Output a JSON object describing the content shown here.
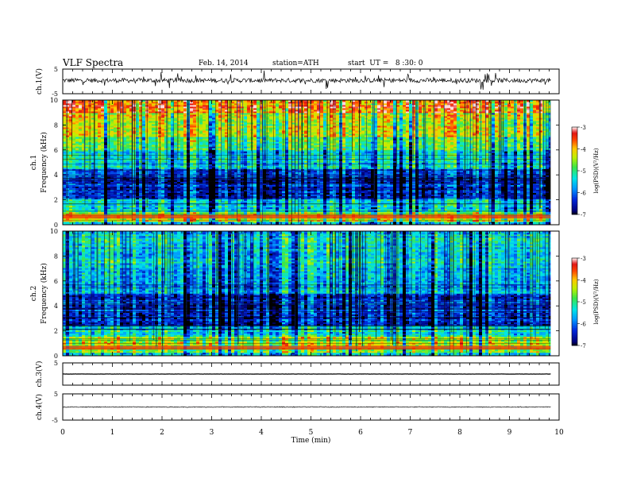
{
  "header": {
    "title": "VLF Spectra",
    "date": "Feb. 14, 2014",
    "station": "station=ATH",
    "start": "start  UT =   8 :30: 0"
  },
  "chart_data": [
    {
      "type": "line",
      "ylabel": "ch.1(V)",
      "ylim": [
        -5,
        5
      ],
      "yticks": [
        "5",
        "-5"
      ],
      "description_free": true,
      "signal": {
        "baseline": 0.4,
        "noise": 0.9,
        "spikes": true
      }
    },
    {
      "type": "heatmap",
      "ylabel_top": "ch.1",
      "ylabel": "Frequency  (kHz)",
      "ylim": [
        0,
        10
      ],
      "yticks": [
        "0",
        "2",
        "4",
        "6",
        "8",
        "10"
      ],
      "colorbar": {
        "label": "log(PSD)(V²/Hz)",
        "ticks": [
          "-3",
          "-4",
          "-5",
          "-6",
          "-7"
        ],
        "range": [
          -7,
          -3
        ]
      },
      "bands": [
        {
          "from": 9,
          "to": 10,
          "level": -3.6
        },
        {
          "from": 7,
          "to": 9,
          "level": -4.2
        },
        {
          "from": 6,
          "to": 7,
          "level": -4.8
        },
        {
          "from": 4.5,
          "to": 6,
          "level": -5.3
        },
        {
          "from": 2,
          "to": 4.5,
          "level": -6.3
        },
        {
          "from": 1,
          "to": 2,
          "level": -5.4
        },
        {
          "from": 0.3,
          "to": 1,
          "level": -4.3
        },
        {
          "from": 0,
          "to": 0.3,
          "level": -5.5
        }
      ]
    },
    {
      "type": "heatmap",
      "ylabel_top": "ch.2",
      "ylabel": "Frequency  (kHz)",
      "ylim": [
        0,
        10
      ],
      "yticks": [
        "0",
        "2",
        "4",
        "6",
        "8",
        "10"
      ],
      "colorbar": {
        "label": "log(PSD)(V²/Hz)",
        "ticks": [
          "-3",
          "-4",
          "-5",
          "-6",
          "-7"
        ],
        "range": [
          -7,
          -3
        ]
      },
      "bands": [
        {
          "from": 7,
          "to": 10,
          "level": -5.3
        },
        {
          "from": 5,
          "to": 7,
          "level": -5.6
        },
        {
          "from": 2.5,
          "to": 5,
          "level": -6.2
        },
        {
          "from": 1.5,
          "to": 2.5,
          "level": -5.2
        },
        {
          "from": 0.3,
          "to": 1.5,
          "level": -4.4
        },
        {
          "from": 0,
          "to": 0.3,
          "level": -5.5
        }
      ]
    },
    {
      "type": "line",
      "ylabel": "ch.3(V)",
      "ylim": [
        -5,
        5
      ],
      "yticks": [
        "5"
      ],
      "signal": {
        "baseline": 0,
        "noise": 0.05
      }
    },
    {
      "type": "line",
      "ylabel": "ch.4(V)",
      "ylim": [
        -5,
        5
      ],
      "yticks": [
        "5",
        "-5"
      ],
      "signal": {
        "baseline": 0,
        "noise": 0.15
      }
    }
  ],
  "xaxis": {
    "label": "Time  (min)",
    "xlim": [
      0,
      10
    ],
    "ticks": [
      "0",
      "1",
      "2",
      "3",
      "4",
      "5",
      "6",
      "7",
      "8",
      "9",
      "10"
    ],
    "data_end": 9.83
  },
  "colors": {
    "trace": "#000000",
    "axes": "#000000"
  }
}
